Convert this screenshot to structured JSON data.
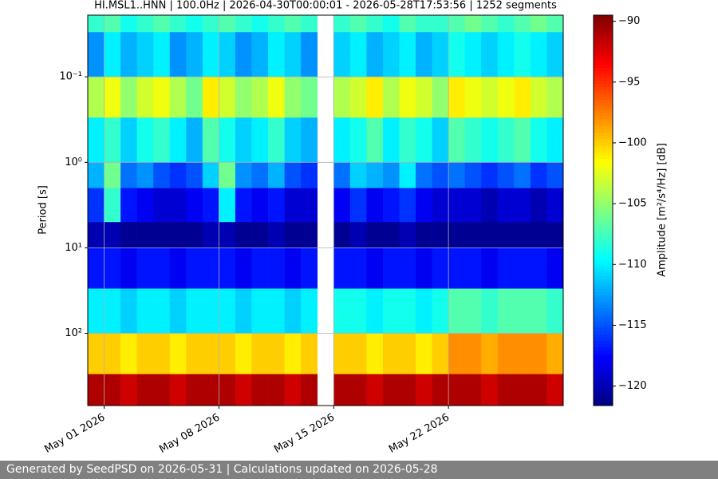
{
  "footer": "Generated by SeedPSD on 2026-05-31 | Calculations updated on 2026-05-28",
  "chart_data": {
    "type": "heatmap",
    "title": "HI.MSL1..HNN | 100.0Hz | 2026-04-30T00:00:01 - 2026-05-28T17:53:56 | 1252 segments",
    "y_label": "Period [s]",
    "colorbar_label": "Amplitude [m²/s⁴/Hz] [dB]",
    "colormap": "jet",
    "log_y": true,
    "y_inverted": true,
    "grid": true,
    "xlim": [
      "2026-04-30",
      "2026-05-29"
    ],
    "xticks": [
      {
        "value": "2026-05-01",
        "label": "May 01 2026"
      },
      {
        "value": "2026-05-08",
        "label": "May 08 2026"
      },
      {
        "value": "2026-05-15",
        "label": "May 15 2026"
      },
      {
        "value": "2026-05-22",
        "label": "May 22 2026"
      }
    ],
    "ylim": [
      0.019,
      700
    ],
    "yticks": [
      {
        "value": 0.1,
        "label": "10⁻¹"
      },
      {
        "value": 1,
        "label": "10⁰"
      },
      {
        "value": 10,
        "label": "10¹"
      },
      {
        "value": 100,
        "label": "10²"
      }
    ],
    "zlim": [
      -121.6,
      -89.5
    ],
    "zticks": [
      {
        "value": -90,
        "label": "−90"
      },
      {
        "value": -95,
        "label": "−95"
      },
      {
        "value": -100,
        "label": "−100"
      },
      {
        "value": -105,
        "label": "−105"
      },
      {
        "value": -110,
        "label": "−110"
      },
      {
        "value": -115,
        "label": "−115"
      },
      {
        "value": -120,
        "label": "−120"
      }
    ],
    "x": [
      "2026-04-30",
      "2026-05-01",
      "2026-05-02",
      "2026-05-03",
      "2026-05-04",
      "2026-05-05",
      "2026-05-06",
      "2026-05-07",
      "2026-05-08",
      "2026-05-09",
      "2026-05-10",
      "2026-05-11",
      "2026-05-12",
      "2026-05-13",
      "2026-05-14",
      "2026-05-15",
      "2026-05-16",
      "2026-05-17",
      "2026-05-18",
      "2026-05-19",
      "2026-05-20",
      "2026-05-21",
      "2026-05-22",
      "2026-05-23",
      "2026-05-24",
      "2026-05-25",
      "2026-05-26",
      "2026-05-27",
      "2026-05-28"
    ],
    "y_edges": [
      0.019,
      0.03,
      0.1,
      0.3,
      1,
      2,
      5,
      10,
      30,
      100,
      300,
      700
    ],
    "z": [
      [
        -108,
        -107,
        -109,
        -108,
        -107,
        -108,
        -109,
        -108,
        -107,
        -108,
        -109,
        -108,
        -107,
        -108,
        null,
        -108,
        -107,
        -108,
        -109,
        -107,
        -108,
        -108,
        -107,
        -106,
        -107,
        -108,
        -107,
        -106,
        -107
      ],
      [
        -113,
        -110,
        -112,
        -111,
        -110,
        -113,
        -112,
        -110,
        -111,
        -113,
        -112,
        -110,
        -111,
        -113,
        null,
        -111,
        -110,
        -112,
        -111,
        -110,
        -112,
        -111,
        -109,
        -110,
        -111,
        -110,
        -109,
        -110,
        -111
      ],
      [
        -104,
        -102,
        -105,
        -103,
        -102,
        -104,
        -106,
        -101,
        -103,
        -105,
        -104,
        -102,
        -105,
        -106,
        null,
        -104,
        -103,
        -101,
        -104,
        -102,
        -103,
        -105,
        -101,
        -102,
        -103,
        -102,
        -101,
        -103,
        -104
      ],
      [
        -110,
        -108,
        -111,
        -109,
        -108,
        -110,
        -112,
        -107,
        -109,
        -111,
        -110,
        -108,
        -111,
        -112,
        null,
        -110,
        -109,
        -107,
        -110,
        -108,
        -109,
        -111,
        -107,
        -108,
        -109,
        -108,
        -107,
        -109,
        -110
      ],
      [
        -112,
        -106,
        -114,
        -113,
        -115,
        -116,
        -115,
        -111,
        -106,
        -113,
        -114,
        -112,
        -115,
        -116,
        null,
        -114,
        -111,
        -112,
        -113,
        -110,
        -114,
        -115,
        -114,
        -115,
        -116,
        -115,
        -114,
        -116,
        -115
      ],
      [
        -116,
        -108,
        -117,
        -118,
        -119,
        -119,
        -118,
        -117,
        -110,
        -117,
        -118,
        -117,
        -119,
        -119,
        null,
        -118,
        -116,
        -118,
        -117,
        -116,
        -118,
        -119,
        -119,
        -119,
        -120,
        -119,
        -119,
        -120,
        -119
      ],
      [
        -120,
        -120,
        -121,
        -121,
        -121,
        -121,
        -121,
        -120,
        -120,
        -121,
        -121,
        -120,
        -121,
        -121,
        null,
        -121,
        -120,
        -121,
        -121,
        -120,
        -121,
        -121,
        -121,
        -121,
        -121,
        -121,
        -121,
        -121,
        -121
      ],
      [
        -117,
        -117,
        -118,
        -117,
        -117,
        -118,
        -117,
        -117,
        -117,
        -118,
        -117,
        -117,
        -118,
        -117,
        null,
        -117,
        -117,
        -118,
        -117,
        -117,
        -118,
        -117,
        -117,
        -117,
        -118,
        -117,
        -117,
        -117,
        -118
      ],
      [
        -110,
        -110,
        -111,
        -110,
        -110,
        -111,
        -110,
        -110,
        -110,
        -111,
        -110,
        -110,
        -111,
        -110,
        null,
        -109,
        -109,
        -110,
        -109,
        -109,
        -110,
        -109,
        -107,
        -107,
        -108,
        -107,
        -107,
        -107,
        -108
      ],
      [
        -100,
        -100,
        -101,
        -100,
        -100,
        -101,
        -100,
        -100,
        -100,
        -101,
        -100,
        -100,
        -101,
        -100,
        null,
        -100,
        -100,
        -101,
        -100,
        -100,
        -101,
        -100,
        -98,
        -98,
        -99,
        -98,
        -98,
        -98,
        -99
      ],
      [
        -91,
        -91,
        -92,
        -91,
        -91,
        -92,
        -91,
        -91,
        -91,
        -92,
        -91,
        -91,
        -92,
        -91,
        null,
        -91,
        -91,
        -92,
        -91,
        -91,
        -92,
        -91,
        -91,
        -91,
        -92,
        -91,
        -91,
        -91,
        -92
      ]
    ]
  }
}
